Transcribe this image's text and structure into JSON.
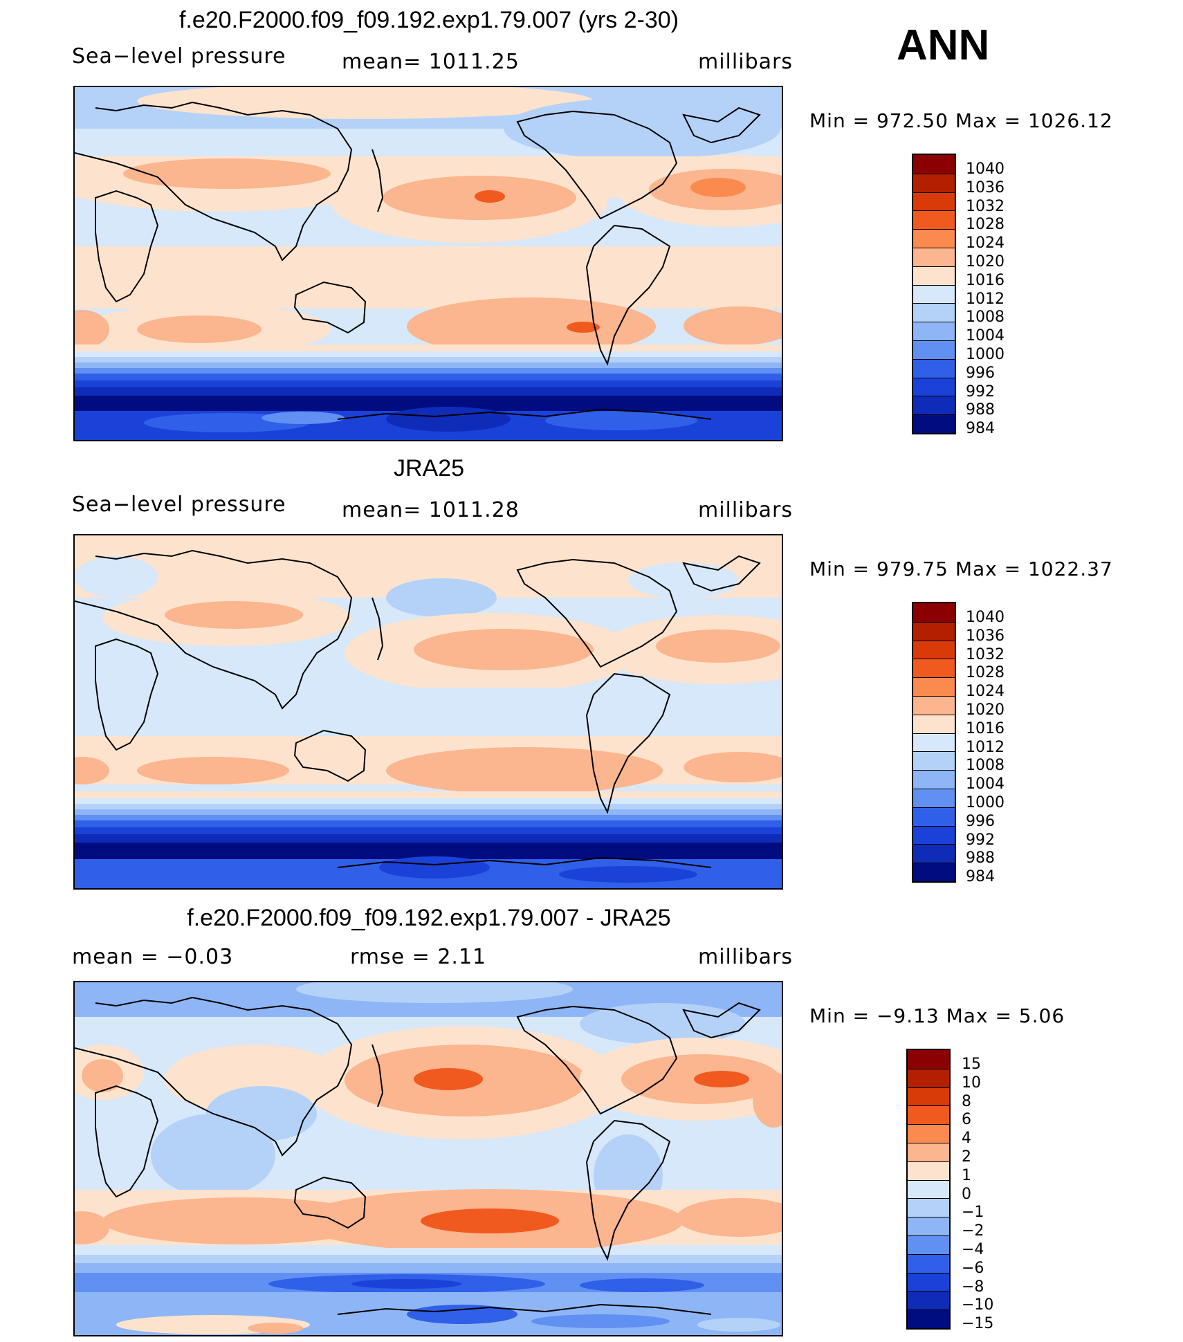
{
  "season": "ANN",
  "panels": [
    {
      "id": "model",
      "title": "f.e20.F2000.f09_f09.192.exp1.79.007 (yrs 2-30)",
      "left_label": "Sea−level pressure",
      "center_label": "mean=  1011.25",
      "units": "millibars",
      "minmax": "Min  =  972.50  Max  =  1026.12",
      "colorbar": {
        "colors": [
          "#8b0000",
          "#b22000",
          "#d83a08",
          "#f05a1e",
          "#fb8a4e",
          "#fbb58f",
          "#fde3cd",
          "#d6e8fa",
          "#b4d2f8",
          "#8eb6f6",
          "#6090f2",
          "#3060e8",
          "#1a42d8",
          "#0f2cb8",
          "#000c80"
        ],
        "labels": [
          "1040",
          "1036",
          "1032",
          "1028",
          "1024",
          "1020",
          "1016",
          "1012",
          "1008",
          "1004",
          "1000",
          "996",
          "992",
          "988",
          "984"
        ]
      }
    },
    {
      "id": "obs",
      "title": "JRA25",
      "left_label": "Sea−level pressure",
      "center_label": "mean=  1011.28",
      "units": "millibars",
      "minmax": "Min  =  979.75  Max  =  1022.37",
      "colorbar": {
        "colors": [
          "#8b0000",
          "#b22000",
          "#d83a08",
          "#f05a1e",
          "#fb8a4e",
          "#fbb58f",
          "#fde3cd",
          "#d6e8fa",
          "#b4d2f8",
          "#8eb6f6",
          "#6090f2",
          "#3060e8",
          "#1a42d8",
          "#0f2cb8",
          "#000c80"
        ],
        "labels": [
          "1040",
          "1036",
          "1032",
          "1028",
          "1024",
          "1020",
          "1016",
          "1012",
          "1008",
          "1004",
          "1000",
          "996",
          "992",
          "988",
          "984"
        ]
      }
    },
    {
      "id": "diff",
      "title": "f.e20.F2000.f09_f09.192.exp1.79.007 - JRA25",
      "left_label": "mean  =    −0.03",
      "center_label": "rmse  =      2.11",
      "units": "millibars",
      "minmax": "Min  =    −9.13  Max  =       5.06",
      "colorbar": {
        "colors": [
          "#8b0000",
          "#b22000",
          "#d83a08",
          "#f05a1e",
          "#fb8a4e",
          "#fbb58f",
          "#fde3cd",
          "#d6e8fa",
          "#b4d2f8",
          "#8eb6f6",
          "#6090f2",
          "#3060e8",
          "#1a42d8",
          "#0f2cb8",
          "#000c80"
        ],
        "labels": [
          "15",
          "10",
          "8",
          "6",
          "4",
          "2",
          "1",
          "0",
          "−1",
          "−2",
          "−4",
          "−6",
          "−8",
          "−10",
          "−15"
        ]
      }
    }
  ]
}
